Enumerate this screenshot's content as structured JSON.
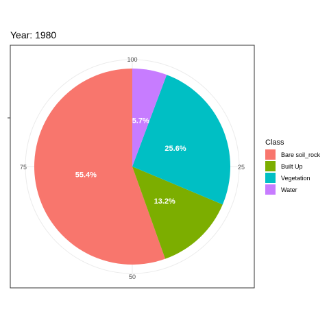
{
  "chart_data": {
    "type": "pie",
    "title": "Year: 1980",
    "categories": [
      "Bare soil_rock",
      "Built Up",
      "Vegetation",
      "Water"
    ],
    "values": [
      55.4,
      13.2,
      25.6,
      5.7
    ],
    "labels": [
      "55.4%",
      "13.2%",
      "25.6%",
      "5.7%"
    ],
    "colors": [
      "#F8766D",
      "#7CAE00",
      "#00BFC4",
      "#C77CFF"
    ],
    "angular_ticks": [
      "100",
      "25",
      "50",
      "75"
    ],
    "legend": {
      "title": "Class",
      "placement": "right",
      "entries": [
        "Bare soil_rock",
        "Built Up",
        "Vegetation",
        "Water"
      ]
    },
    "grid": true
  }
}
